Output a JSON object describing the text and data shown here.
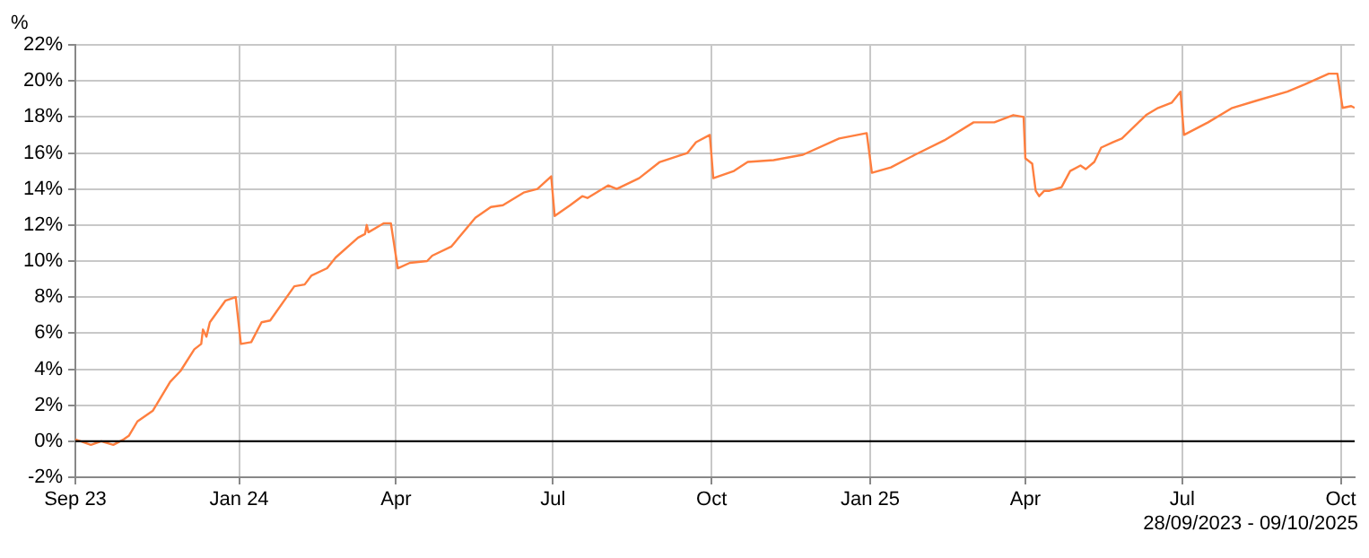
{
  "chart_data": {
    "type": "line",
    "ylabel": "%",
    "xlim": [
      "2023-09-28",
      "2025-10-09"
    ],
    "ylim": [
      -2,
      22
    ],
    "xticks": [
      {
        "value": "2023-09-28",
        "label": "Sep 23"
      },
      {
        "value": "2024-01-01",
        "label": "Jan 24"
      },
      {
        "value": "2024-04-01",
        "label": "Apr"
      },
      {
        "value": "2024-07-01",
        "label": "Jul"
      },
      {
        "value": "2024-10-01",
        "label": "Oct"
      },
      {
        "value": "2025-01-01",
        "label": "Jan 25"
      },
      {
        "value": "2025-04-01",
        "label": "Apr"
      },
      {
        "value": "2025-07-01",
        "label": "Jul"
      },
      {
        "value": "2025-10-01",
        "label": "Oct"
      }
    ],
    "yticks": [
      {
        "value": -2,
        "label": "-2%"
      },
      {
        "value": 0,
        "label": "0%"
      },
      {
        "value": 2,
        "label": "2%"
      },
      {
        "value": 4,
        "label": "4%"
      },
      {
        "value": 6,
        "label": "6%"
      },
      {
        "value": 8,
        "label": "8%"
      },
      {
        "value": 10,
        "label": "10%"
      },
      {
        "value": 12,
        "label": "12%"
      },
      {
        "value": 14,
        "label": "14%"
      },
      {
        "value": 16,
        "label": "16%"
      },
      {
        "value": 18,
        "label": "18%"
      },
      {
        "value": 20,
        "label": "20%"
      },
      {
        "value": 22,
        "label": "22%"
      }
    ],
    "grid": true,
    "legend": false,
    "marker": "none",
    "line_style": "solid",
    "ref_lines": [
      {
        "axis": "y",
        "value": 0,
        "color": "#000000"
      }
    ],
    "annotations": [
      "28/09/2023 - 09/10/2025"
    ],
    "x": [
      "2023-09-28",
      "2023-10-07",
      "2023-10-13",
      "2023-10-20",
      "2023-10-26",
      "2023-10-29",
      "2023-11-03",
      "2023-11-12",
      "2023-11-22",
      "2023-11-28",
      "2023-12-06",
      "2023-12-10",
      "2023-12-11",
      "2023-12-13",
      "2023-12-15",
      "2023-12-24",
      "2023-12-30",
      "2024-01-02",
      "2024-01-08",
      "2024-01-14",
      "2024-01-19",
      "2024-02-02",
      "2024-02-08",
      "2024-02-12",
      "2024-02-21",
      "2024-02-26",
      "2024-03-10",
      "2024-03-14",
      "2024-03-15",
      "2024-03-16",
      "2024-03-25",
      "2024-03-29",
      "2024-04-02",
      "2024-04-09",
      "2024-04-19",
      "2024-04-22",
      "2024-05-03",
      "2024-05-17",
      "2024-05-26",
      "2024-06-02",
      "2024-06-14",
      "2024-06-22",
      "2024-06-30",
      "2024-07-02",
      "2024-07-11",
      "2024-07-18",
      "2024-07-21",
      "2024-08-02",
      "2024-08-07",
      "2024-08-20",
      "2024-09-01",
      "2024-09-17",
      "2024-09-22",
      "2024-09-30",
      "2024-10-02",
      "2024-10-14",
      "2024-10-22",
      "2024-11-06",
      "2024-11-23",
      "2024-12-14",
      "2024-12-30",
      "2025-01-02",
      "2025-01-13",
      "2025-01-27",
      "2025-02-13",
      "2025-03-02",
      "2025-03-14",
      "2025-03-25",
      "2025-03-31",
      "2025-04-01",
      "2025-04-05",
      "2025-04-07",
      "2025-04-09",
      "2025-04-12",
      "2025-04-15",
      "2025-04-22",
      "2025-04-27",
      "2025-05-03",
      "2025-05-06",
      "2025-05-11",
      "2025-05-15",
      "2025-05-22",
      "2025-05-27",
      "2025-06-10",
      "2025-06-17",
      "2025-06-25",
      "2025-06-30",
      "2025-07-02",
      "2025-07-16",
      "2025-07-30",
      "2025-08-13",
      "2025-08-31",
      "2025-09-10",
      "2025-09-24",
      "2025-09-29",
      "2025-10-02",
      "2025-10-07",
      "2025-10-09"
    ],
    "series": [
      {
        "color": "#ff7f3f",
        "values": [
          0.1,
          -0.2,
          0,
          -0.2,
          0.1,
          0.3,
          1.1,
          1.7,
          3.3,
          3.9,
          5.1,
          5.4,
          6.2,
          5.8,
          6.6,
          7.8,
          8.0,
          5.4,
          5.5,
          6.6,
          6.7,
          8.6,
          8.7,
          9.2,
          9.6,
          10.2,
          11.3,
          11.5,
          12.0,
          11.6,
          12.1,
          12.1,
          9.6,
          9.9,
          10.0,
          10.3,
          10.8,
          12.4,
          13.0,
          13.1,
          13.8,
          14.0,
          14.7,
          12.5,
          13.1,
          13.6,
          13.5,
          14.2,
          14.0,
          14.6,
          15.5,
          16.0,
          16.6,
          17.0,
          14.6,
          15.0,
          15.5,
          15.6,
          15.9,
          16.8,
          17.1,
          14.9,
          15.2,
          15.9,
          16.7,
          17.7,
          17.7,
          18.1,
          18.0,
          15.7,
          15.4,
          13.9,
          13.6,
          13.9,
          13.9,
          14.1,
          15.0,
          15.3,
          15.1,
          15.5,
          16.3,
          16.6,
          16.8,
          18.1,
          18.5,
          18.8,
          19.4,
          17.0,
          17.7,
          18.5,
          18.9,
          19.4,
          19.8,
          20.4,
          20.4,
          18.5,
          18.6,
          18.5
        ]
      }
    ]
  }
}
